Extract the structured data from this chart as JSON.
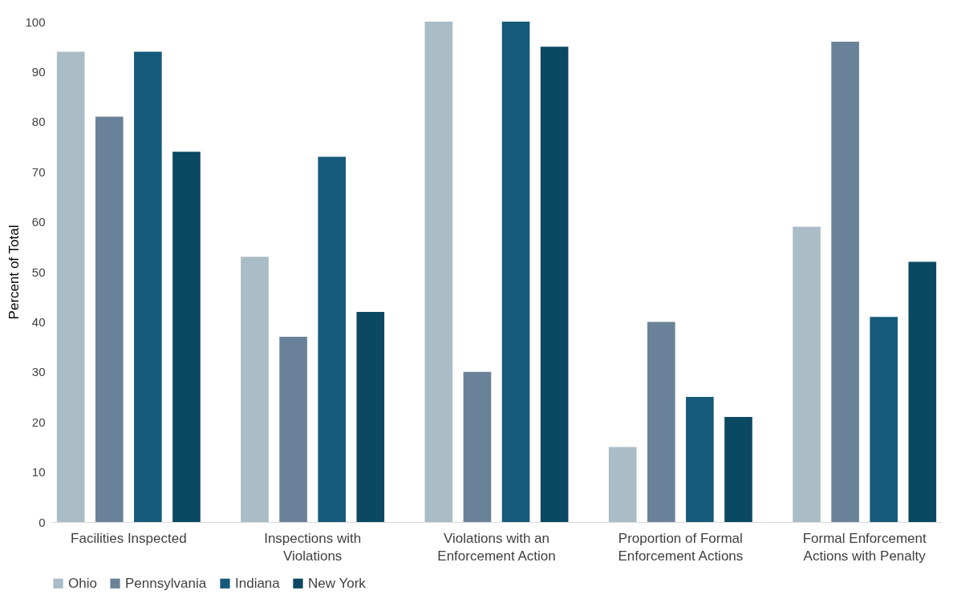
{
  "chart_data": {
    "type": "bar",
    "ylabel": "Percent of Total",
    "categories": [
      "Facilities Inspected",
      "Inspections with Violations",
      "Violations with an Enforcement Action",
      "Proportion of Formal Enforcement Actions",
      "Formal Enforcement Actions with Penalty"
    ],
    "series": [
      {
        "name": "Ohio",
        "color": "#aabcc6",
        "values": [
          94,
          53,
          100,
          15,
          59
        ]
      },
      {
        "name": "Pennsylvania",
        "color": "#6a8299",
        "values": [
          81,
          37,
          30,
          40,
          96
        ]
      },
      {
        "name": "Indiana",
        "color": "#155a7a",
        "values": [
          94,
          73,
          100,
          25,
          41
        ]
      },
      {
        "name": "New York",
        "color": "#0b4862",
        "values": [
          74,
          42,
          95,
          21,
          52
        ]
      }
    ],
    "ylim": [
      0,
      100
    ],
    "yticks": [
      0,
      10,
      20,
      30,
      40,
      50,
      60,
      70,
      80,
      90,
      100
    ],
    "grid": false,
    "legend": "bottom"
  }
}
